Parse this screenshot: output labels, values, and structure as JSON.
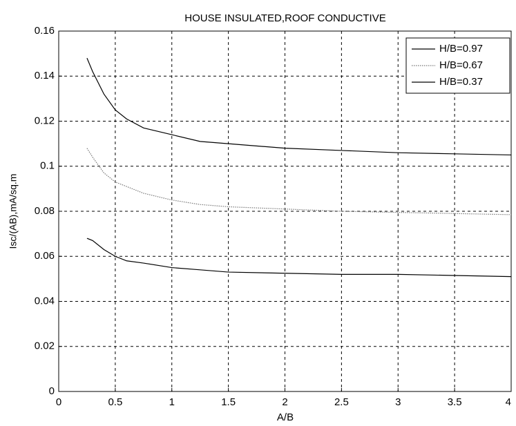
{
  "chart_data": {
    "type": "line",
    "title": "HOUSE INSULATED,ROOF CONDUCTIVE",
    "x_label": "A/B",
    "y_label": "Isc/(AB),mA/sq.m",
    "x": [
      0.25,
      0.3,
      0.4,
      0.5,
      0.6,
      0.75,
      1,
      1.25,
      1.5,
      2,
      2.5,
      3,
      3.5,
      4
    ],
    "series": [
      {
        "name": "H/B=0.97",
        "color": "#000000",
        "line_style": "solid",
        "values": [
          0.148,
          0.142,
          0.132,
          0.125,
          0.121,
          0.117,
          0.114,
          0.111,
          0.11,
          0.108,
          0.107,
          0.106,
          0.1055,
          0.105
        ]
      },
      {
        "name": "H/B=0.67",
        "color": "#777777",
        "line_style": "dotted",
        "values": [
          0.108,
          0.104,
          0.097,
          0.093,
          0.091,
          0.088,
          0.085,
          0.083,
          0.082,
          0.081,
          0.08,
          0.0795,
          0.079,
          0.0785
        ]
      },
      {
        "name": "H/B=0.37",
        "color": "#000000",
        "line_style": "solid",
        "values": [
          0.068,
          0.067,
          0.063,
          0.06,
          0.058,
          0.057,
          0.055,
          0.054,
          0.053,
          0.0525,
          0.052,
          0.052,
          0.0515,
          0.051
        ]
      }
    ],
    "xlim": [
      0,
      4
    ],
    "ylim": [
      0,
      0.16
    ],
    "xticks": [
      0,
      0.5,
      1,
      1.5,
      2,
      2.5,
      3,
      3.5,
      4
    ],
    "yticks": [
      0,
      0.02,
      0.04,
      0.06,
      0.08,
      0.1,
      0.12,
      0.14,
      0.16
    ],
    "grid": true,
    "legend_position": "upper right"
  }
}
